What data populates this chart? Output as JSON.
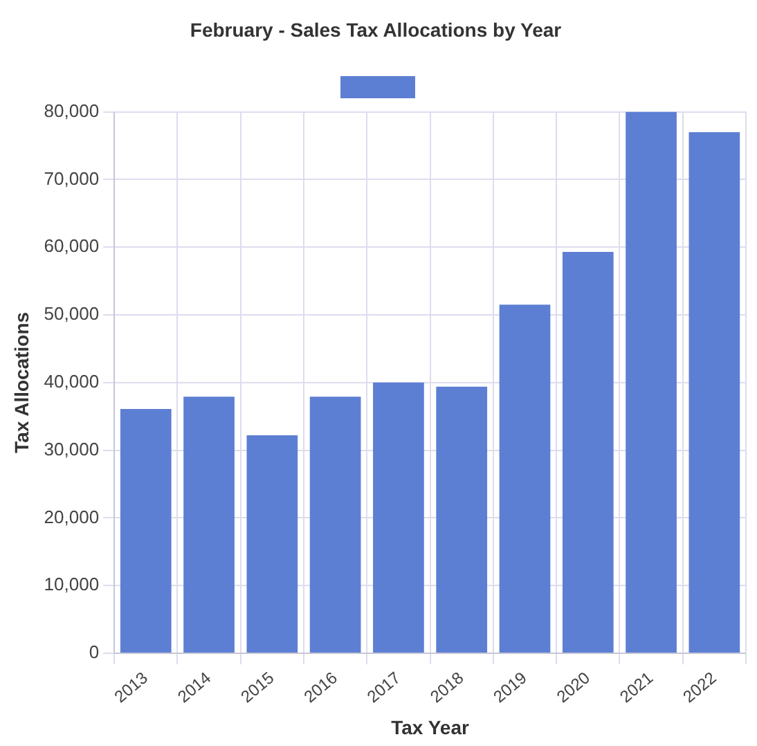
{
  "chart_data": {
    "type": "bar",
    "title": "February - Sales Tax Allocations by Year",
    "xlabel": "Tax Year",
    "ylabel": "Tax Allocations",
    "categories": [
      "2013",
      "2014",
      "2015",
      "2016",
      "2017",
      "2018",
      "2019",
      "2020",
      "2021",
      "2022"
    ],
    "series": [
      {
        "color": "#5d7fd3",
        "values": [
          36100,
          37900,
          32200,
          37900,
          40000,
          39400,
          51500,
          59300,
          80000,
          77000
        ]
      }
    ],
    "ylim": [
      0,
      80000
    ],
    "yticks": [
      0,
      {
        "value": 10000,
        "label": "10,000"
      },
      {
        "value": 20000,
        "label": "20,000"
      },
      {
        "value": 30000,
        "label": "30,000"
      },
      {
        "value": 40000,
        "label": "40,000"
      },
      {
        "value": 50000,
        "label": "50,000"
      },
      {
        "value": 60000,
        "label": "60,000"
      },
      {
        "value": 70000,
        "label": "70,000"
      },
      {
        "value": 80000,
        "label": "80,000"
      }
    ],
    "grid": true
  }
}
